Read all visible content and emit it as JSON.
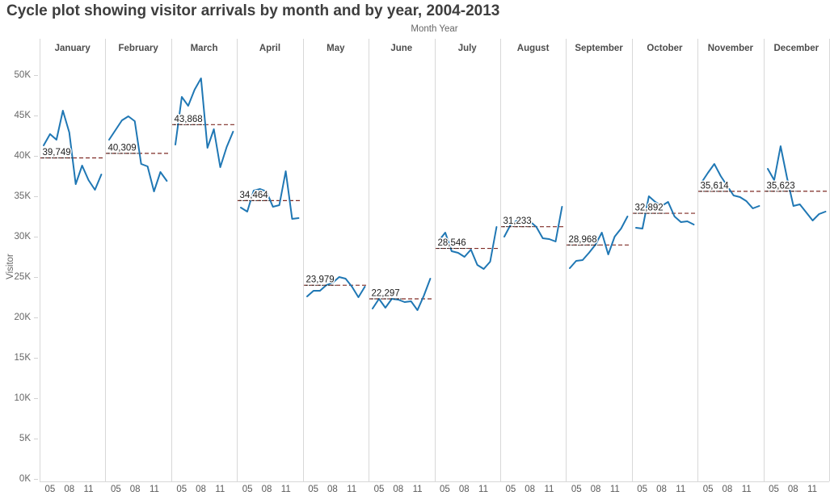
{
  "title": "Cycle plot showing visitor arrivals by month and by year, 2004-2013",
  "chart_data": {
    "type": "line",
    "title": "Cycle plot showing visitor arrivals by month and by year, 2004-2013",
    "top_axis_label": "Month Year",
    "y_axis": {
      "title": "Visitor",
      "range": [
        0,
        52000
      ],
      "ticks": [
        {
          "label": "0K",
          "value": 0
        },
        {
          "label": "5K",
          "value": 5000
        },
        {
          "label": "10K",
          "value": 10000
        },
        {
          "label": "15K",
          "value": 15000
        },
        {
          "label": "20K",
          "value": 20000
        },
        {
          "label": "25K",
          "value": 25000
        },
        {
          "label": "30K",
          "value": 30000
        },
        {
          "label": "35K",
          "value": 35000
        },
        {
          "label": "40K",
          "value": 40000
        },
        {
          "label": "45K",
          "value": 45000
        },
        {
          "label": "50K",
          "value": 50000
        }
      ]
    },
    "years": [
      2004,
      2005,
      2006,
      2007,
      2008,
      2009,
      2010,
      2011,
      2012,
      2013
    ],
    "x_tick_labels": [
      {
        "label": "05",
        "year_index": 1
      },
      {
        "label": "08",
        "year_index": 4
      },
      {
        "label": "11",
        "year_index": 7
      }
    ],
    "colors": {
      "line": "#1f77b4",
      "reference_line": "#7f2b25",
      "reference_label_text": "#1c1c1c",
      "grid": "#d8d8d8"
    },
    "legend": "none",
    "grid": "off",
    "months": [
      {
        "name": "January",
        "average": 39749,
        "average_label": "39,749",
        "values": [
          41300,
          42700,
          42000,
          45600,
          42900,
          36500,
          38800,
          37000,
          35800,
          37700
        ]
      },
      {
        "name": "February",
        "average": 40309,
        "average_label": "40,309",
        "values": [
          42000,
          43200,
          44400,
          44900,
          44300,
          39000,
          38700,
          35600,
          38000,
          36900
        ]
      },
      {
        "name": "March",
        "average": 43868,
        "average_label": "43,868",
        "values": [
          41400,
          47300,
          46200,
          48200,
          49600,
          41000,
          43300,
          38600,
          41100,
          43000
        ]
      },
      {
        "name": "April",
        "average": 34464,
        "average_label": "34,464",
        "values": [
          33600,
          33100,
          35700,
          35900,
          35600,
          33700,
          33900,
          38100,
          32200,
          32300
        ]
      },
      {
        "name": "May",
        "average": 23979,
        "average_label": "23,979",
        "values": [
          22600,
          23300,
          23300,
          24000,
          24300,
          25000,
          24800,
          23800,
          22500,
          23800
        ]
      },
      {
        "name": "June",
        "average": 22297,
        "average_label": "22,297",
        "values": [
          21100,
          22300,
          21200,
          22300,
          22200,
          21900,
          22000,
          20900,
          22700,
          24800
        ]
      },
      {
        "name": "July",
        "average": 28546,
        "average_label": "28,546",
        "values": [
          29500,
          30500,
          28200,
          28000,
          27500,
          28400,
          26500,
          26000,
          26900,
          31200
        ]
      },
      {
        "name": "August",
        "average": 31233,
        "average_label": "31,233",
        "values": [
          30000,
          31500,
          32000,
          31800,
          31900,
          31200,
          29800,
          29700,
          29400,
          33700
        ]
      },
      {
        "name": "September",
        "average": 28968,
        "average_label": "28,968",
        "values": [
          26100,
          27000,
          27100,
          28000,
          29000,
          30500,
          27800,
          30000,
          31000,
          32500
        ]
      },
      {
        "name": "October",
        "average": 32892,
        "average_label": "32,892",
        "values": [
          31100,
          31000,
          35000,
          34300,
          33800,
          34300,
          32500,
          31800,
          31900,
          31500
        ]
      },
      {
        "name": "November",
        "average": 35614,
        "average_label": "35,614",
        "values": [
          36700,
          37900,
          39000,
          37500,
          36300,
          35100,
          34900,
          34400,
          33500,
          33800
        ]
      },
      {
        "name": "December",
        "average": 35623,
        "average_label": "35,623",
        "values": [
          38400,
          37000,
          41200,
          37300,
          33800,
          34000,
          33000,
          32000,
          32800,
          33100
        ]
      }
    ]
  }
}
